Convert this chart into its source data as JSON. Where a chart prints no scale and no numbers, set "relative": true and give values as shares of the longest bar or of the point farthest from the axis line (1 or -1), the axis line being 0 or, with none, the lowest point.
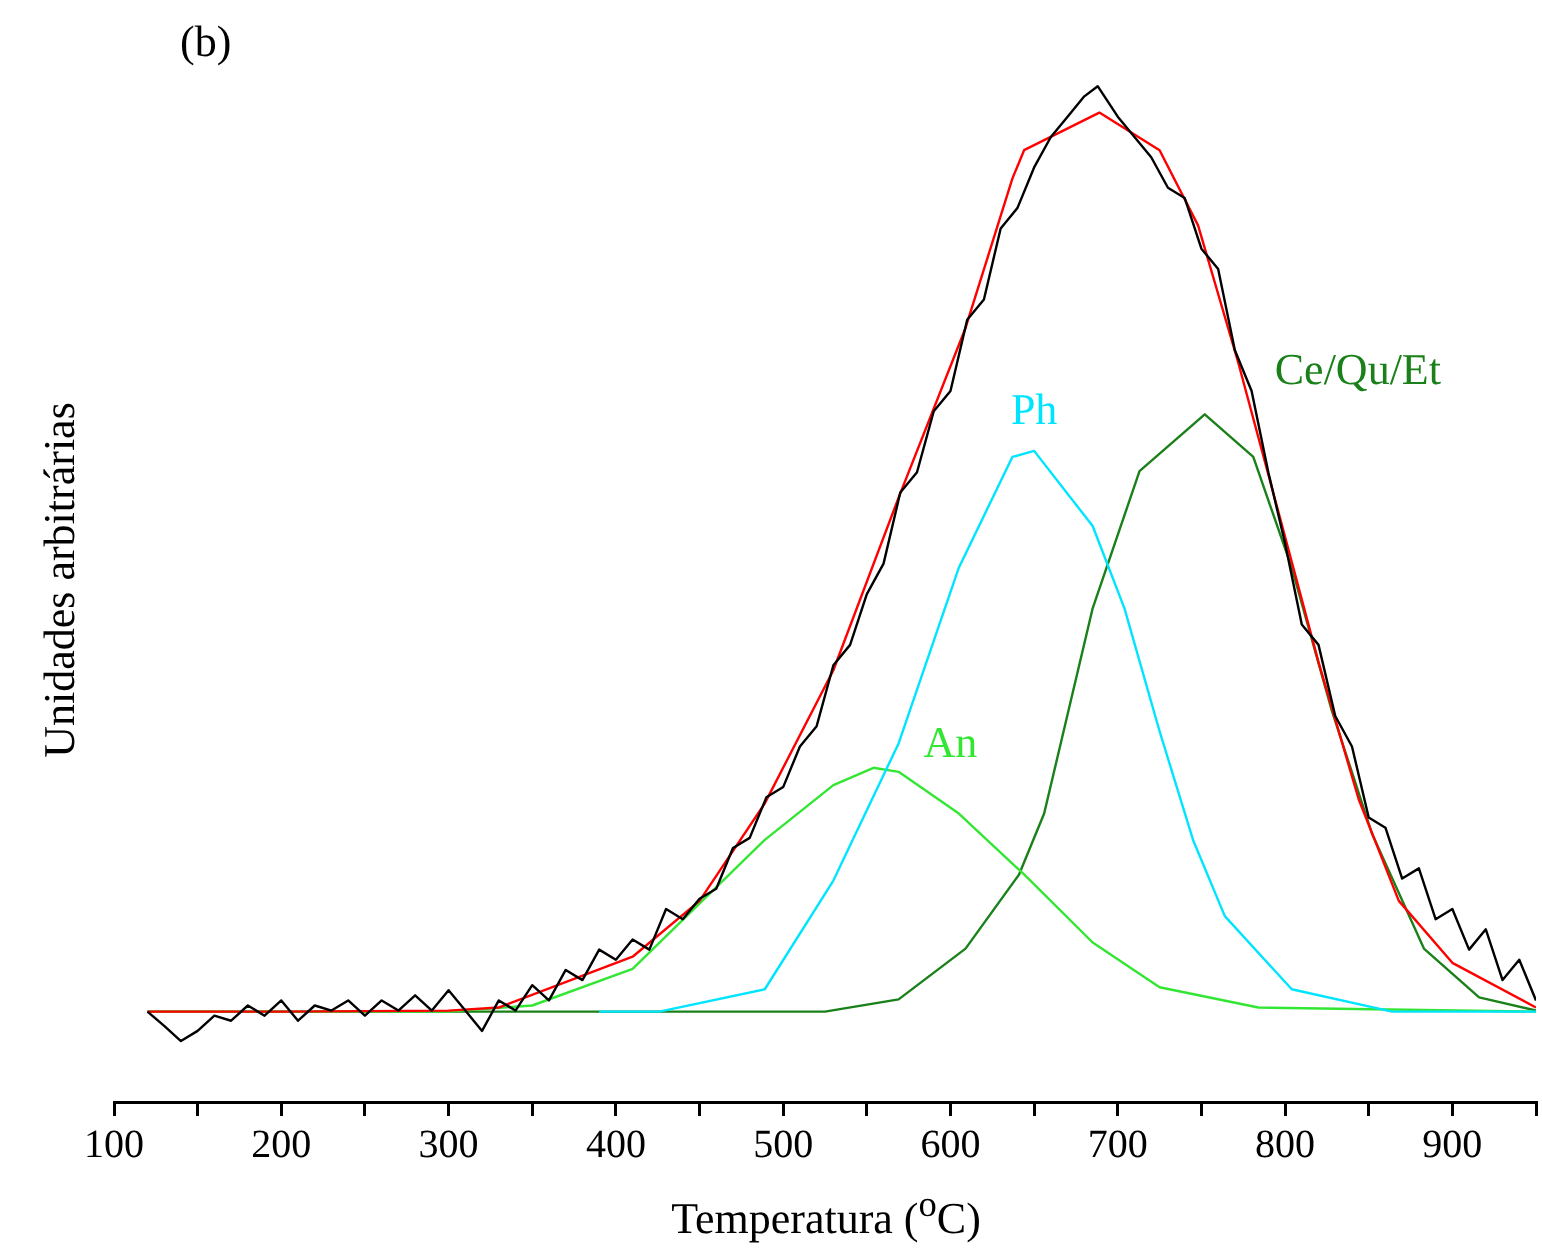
{
  "chart_data": {
    "type": "line",
    "xlabel": "Temperatura ($^{o}$C)",
    "ylabel": "Unidades arbitrárias",
    "annotations": [
      "(b)"
    ],
    "relative": true,
    "marker": "none",
    "tick_labels": "x",
    "xlim": [
      100,
      950
    ],
    "xticks": [
      100,
      {
        "value": 150,
        "label": null
      },
      200,
      {
        "value": 250,
        "label": null
      },
      300,
      {
        "value": 350,
        "label": null
      },
      400,
      {
        "value": 450,
        "label": null
      },
      500,
      {
        "value": 550,
        "label": null
      },
      600,
      {
        "value": 650,
        "label": null
      },
      700,
      {
        "value": 750,
        "label": null
      },
      800,
      {
        "value": 850,
        "label": null
      },
      900,
      {
        "value": 950,
        "label": null
      }
    ],
    "series": [
      {
        "color": "#000000",
        "x": [
          120,
          130,
          140,
          150,
          160,
          170,
          180,
          190,
          200,
          210,
          220,
          230,
          240,
          250,
          260,
          270,
          280,
          290,
          300,
          310,
          320,
          330,
          340,
          350,
          360,
          370,
          380,
          390,
          400,
          410,
          420,
          430,
          440,
          450,
          460,
          470,
          480,
          490,
          500,
          510,
          520,
          530,
          540,
          550,
          560,
          570,
          580,
          590,
          600,
          610,
          620,
          630,
          640,
          650,
          660,
          670,
          680,
          688,
          700,
          710,
          720,
          730,
          740,
          750,
          760,
          770,
          780,
          790,
          800,
          810,
          820,
          830,
          840,
          850,
          860,
          870,
          880,
          890,
          900,
          910,
          920,
          930,
          940,
          950
        ],
        "values": [
          0.089,
          0.075,
          0.06,
          0.07,
          0.085,
          0.08,
          0.095,
          0.085,
          0.1,
          0.08,
          0.095,
          0.09,
          0.1,
          0.085,
          0.1,
          0.09,
          0.105,
          0.09,
          0.11,
          0.09,
          0.07,
          0.1,
          0.09,
          0.115,
          0.1,
          0.13,
          0.12,
          0.15,
          0.14,
          0.16,
          0.15,
          0.19,
          0.18,
          0.2,
          0.21,
          0.25,
          0.26,
          0.3,
          0.31,
          0.35,
          0.37,
          0.43,
          0.45,
          0.5,
          0.53,
          0.6,
          0.62,
          0.68,
          0.7,
          0.77,
          0.79,
          0.86,
          0.88,
          0.92,
          0.95,
          0.97,
          0.99,
          1.0,
          0.97,
          0.95,
          0.93,
          0.9,
          0.89,
          0.84,
          0.82,
          0.74,
          0.7,
          0.62,
          0.55,
          0.47,
          0.45,
          0.38,
          0.35,
          0.28,
          0.27,
          0.22,
          0.23,
          0.18,
          0.19,
          0.15,
          0.17,
          0.12,
          0.14,
          0.1
        ]
      },
      {
        "color": "#ff0000",
        "x": [
          120,
          200,
          300,
          330,
          410,
          450,
          489,
          530,
          569,
          609,
          637,
          644,
          689,
          725,
          748,
          772,
          796,
          820,
          844,
          868,
          900,
          950
        ],
        "values": [
          0.089,
          0.089,
          0.09,
          0.093,
          0.143,
          0.198,
          0.294,
          0.425,
          0.595,
          0.762,
          0.909,
          0.937,
          0.974,
          0.937,
          0.863,
          0.728,
          0.581,
          0.433,
          0.298,
          0.198,
          0.137,
          0.093
        ]
      },
      {
        "name": "Ph",
        "color": "#00e5ff",
        "x": [
          390,
          426,
          489,
          530,
          569,
          605,
          637,
          650,
          685,
          704,
          725,
          745,
          764,
          804,
          864,
          950
        ],
        "values": [
          0.089,
          0.089,
          0.111,
          0.218,
          0.353,
          0.526,
          0.635,
          0.641,
          0.567,
          0.486,
          0.365,
          0.258,
          0.183,
          0.111,
          0.089,
          0.089
        ]
      },
      {
        "name": "An",
        "color": "#33e633",
        "x": [
          120,
          300,
          350,
          410,
          489,
          530,
          554,
          569,
          605,
          644,
          685,
          725,
          784,
          950
        ],
        "values": [
          0.089,
          0.089,
          0.095,
          0.131,
          0.258,
          0.312,
          0.329,
          0.325,
          0.284,
          0.224,
          0.157,
          0.113,
          0.093,
          0.089
        ]
      },
      {
        "name": "Ce/Qu/Et",
        "color": "#1a801a",
        "x": [
          120,
          525,
          569,
          609,
          641,
          656,
          685,
          713,
          752,
          781,
          804,
          828,
          852,
          883,
          916,
          950
        ],
        "values": [
          0.089,
          0.089,
          0.101,
          0.151,
          0.224,
          0.284,
          0.486,
          0.621,
          0.677,
          0.635,
          0.526,
          0.385,
          0.264,
          0.151,
          0.103,
          0.09
        ]
      }
    ]
  }
}
